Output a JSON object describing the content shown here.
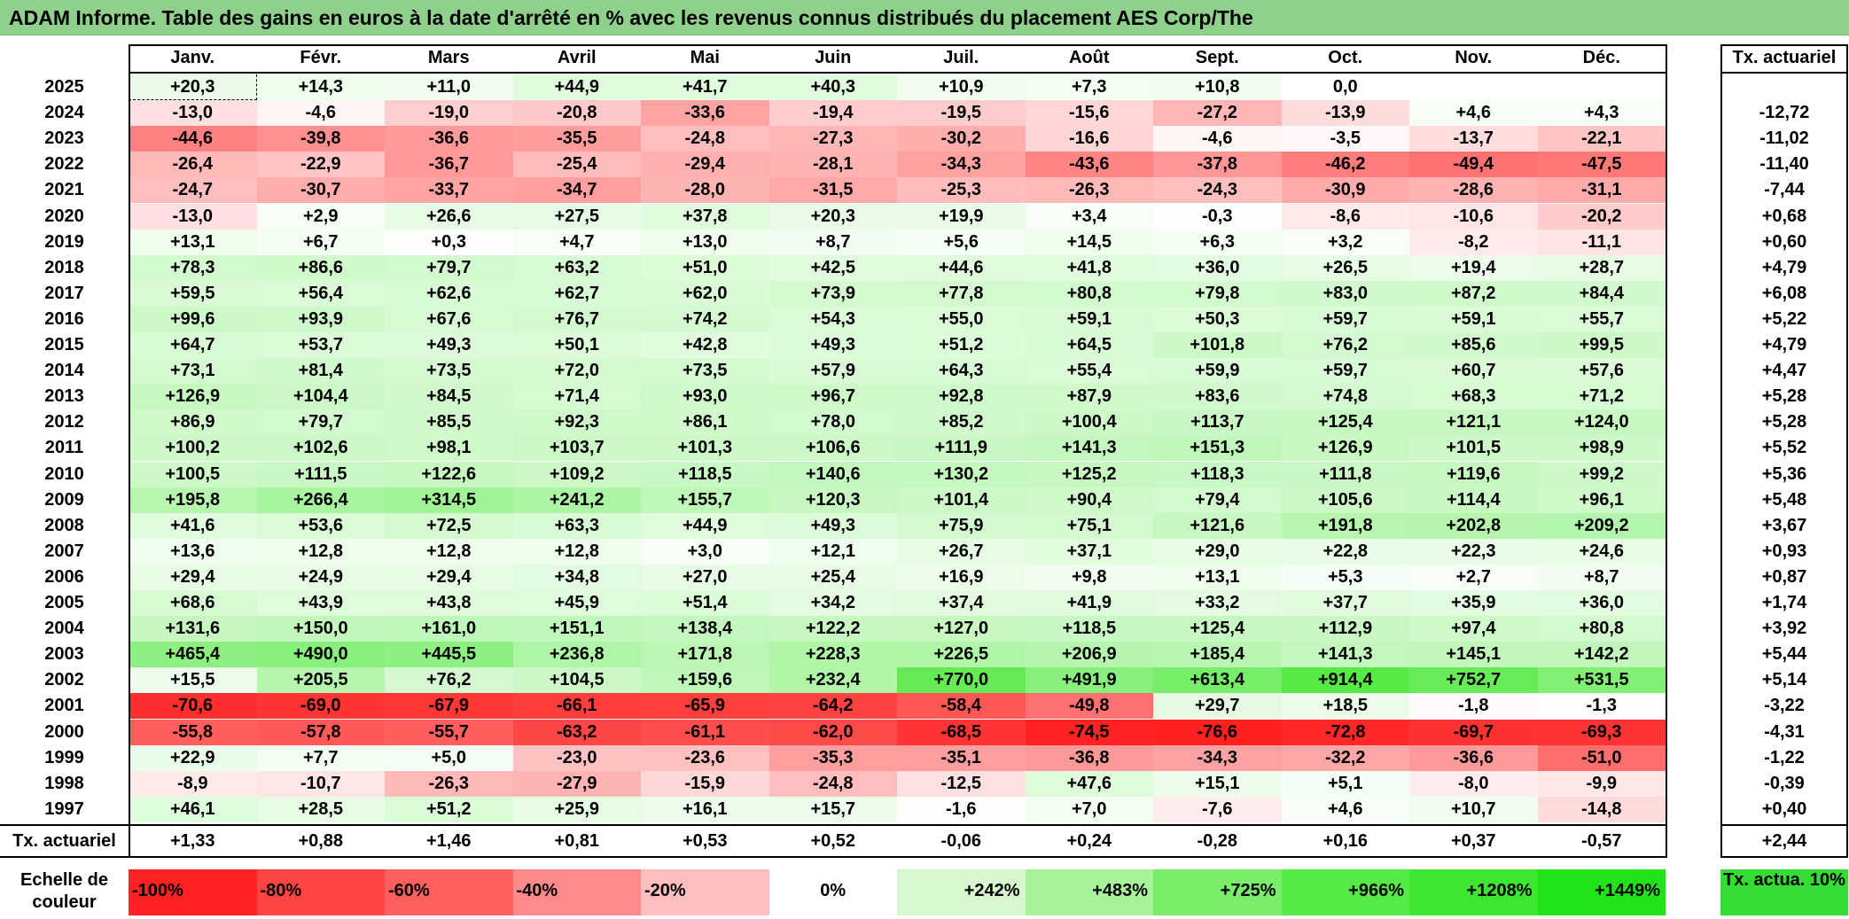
{
  "title": "ADAM Informe. Table des gains en euros à la date d'arrêté en % avec les revenus connus distribués du placement AES Corp/The",
  "chart_data": {
    "type": "heatmap",
    "columns": [
      "Janv.",
      "Févr.",
      "Mars",
      "Avril",
      "Mai",
      "Juin",
      "Juil.",
      "Août",
      "Sept.",
      "Oct.",
      "Nov.",
      "Déc."
    ],
    "rate_header": "Tx. actuariel",
    "rows": [
      {
        "year": "2025",
        "values": [
          "+20,3",
          "+14,3",
          "+11,0",
          "+44,9",
          "+41,7",
          "+40,3",
          "+10,9",
          "+7,3",
          "+10,8",
          "0,0",
          "",
          ""
        ],
        "rate": ""
      },
      {
        "year": "2024",
        "values": [
          "-13,0",
          "-4,6",
          "-19,0",
          "-20,8",
          "-33,6",
          "-19,4",
          "-19,5",
          "-15,6",
          "-27,2",
          "-13,9",
          "+4,6",
          "+4,3"
        ],
        "rate": "-12,72"
      },
      {
        "year": "2023",
        "values": [
          "-44,6",
          "-39,8",
          "-36,6",
          "-35,5",
          "-24,8",
          "-27,3",
          "-30,2",
          "-16,6",
          "-4,6",
          "-3,5",
          "-13,7",
          "-22,1"
        ],
        "rate": "-11,02"
      },
      {
        "year": "2022",
        "values": [
          "-26,4",
          "-22,9",
          "-36,7",
          "-25,4",
          "-29,4",
          "-28,1",
          "-34,3",
          "-43,6",
          "-37,8",
          "-46,2",
          "-49,4",
          "-47,5"
        ],
        "rate": "-11,40"
      },
      {
        "year": "2021",
        "values": [
          "-24,7",
          "-30,7",
          "-33,7",
          "-34,7",
          "-28,0",
          "-31,5",
          "-25,3",
          "-26,3",
          "-24,3",
          "-30,9",
          "-28,6",
          "-31,1"
        ],
        "rate": "-7,44"
      },
      {
        "year": "2020",
        "values": [
          "-13,0",
          "+2,9",
          "+26,6",
          "+27,5",
          "+37,8",
          "+20,3",
          "+19,9",
          "+3,4",
          "-0,3",
          "-8,6",
          "-10,6",
          "-20,2"
        ],
        "rate": "+0,68"
      },
      {
        "year": "2019",
        "values": [
          "+13,1",
          "+6,7",
          "+0,3",
          "+4,7",
          "+13,0",
          "+8,7",
          "+5,6",
          "+14,5",
          "+6,3",
          "+3,2",
          "-8,2",
          "-11,1"
        ],
        "rate": "+0,60"
      },
      {
        "year": "2018",
        "values": [
          "+78,3",
          "+86,6",
          "+79,7",
          "+63,2",
          "+51,0",
          "+42,5",
          "+44,6",
          "+41,8",
          "+36,0",
          "+26,5",
          "+19,4",
          "+28,7"
        ],
        "rate": "+4,79"
      },
      {
        "year": "2017",
        "values": [
          "+59,5",
          "+56,4",
          "+62,6",
          "+62,7",
          "+62,0",
          "+73,9",
          "+77,8",
          "+80,8",
          "+79,8",
          "+83,0",
          "+87,2",
          "+84,4"
        ],
        "rate": "+6,08"
      },
      {
        "year": "2016",
        "values": [
          "+99,6",
          "+93,9",
          "+67,6",
          "+76,7",
          "+74,2",
          "+54,3",
          "+55,0",
          "+59,1",
          "+50,3",
          "+59,7",
          "+59,1",
          "+55,7"
        ],
        "rate": "+5,22"
      },
      {
        "year": "2015",
        "values": [
          "+64,7",
          "+53,7",
          "+49,3",
          "+50,1",
          "+42,8",
          "+49,3",
          "+51,2",
          "+64,5",
          "+101,8",
          "+76,2",
          "+85,6",
          "+99,5"
        ],
        "rate": "+4,79"
      },
      {
        "year": "2014",
        "values": [
          "+73,1",
          "+81,4",
          "+73,5",
          "+72,0",
          "+73,5",
          "+57,9",
          "+64,3",
          "+55,4",
          "+59,9",
          "+59,7",
          "+60,7",
          "+57,6"
        ],
        "rate": "+4,47"
      },
      {
        "year": "2013",
        "values": [
          "+126,9",
          "+104,4",
          "+84,5",
          "+71,4",
          "+93,0",
          "+96,7",
          "+92,8",
          "+87,9",
          "+83,6",
          "+74,8",
          "+68,3",
          "+71,2"
        ],
        "rate": "+5,28"
      },
      {
        "year": "2012",
        "values": [
          "+86,9",
          "+79,7",
          "+85,5",
          "+92,3",
          "+86,1",
          "+78,0",
          "+85,2",
          "+100,4",
          "+113,7",
          "+125,4",
          "+121,1",
          "+124,0"
        ],
        "rate": "+5,28"
      },
      {
        "year": "2011",
        "values": [
          "+100,2",
          "+102,6",
          "+98,1",
          "+103,7",
          "+101,3",
          "+106,6",
          "+111,9",
          "+141,3",
          "+151,3",
          "+126,9",
          "+101,5",
          "+98,9"
        ],
        "rate": "+5,52"
      },
      {
        "year": "2010",
        "values": [
          "+100,5",
          "+111,5",
          "+122,6",
          "+109,2",
          "+118,5",
          "+140,6",
          "+130,2",
          "+125,2",
          "+118,3",
          "+111,8",
          "+119,6",
          "+99,2"
        ],
        "rate": "+5,36"
      },
      {
        "year": "2009",
        "values": [
          "+195,8",
          "+266,4",
          "+314,5",
          "+241,2",
          "+155,7",
          "+120,3",
          "+101,4",
          "+90,4",
          "+79,4",
          "+105,6",
          "+114,4",
          "+96,1"
        ],
        "rate": "+5,48"
      },
      {
        "year": "2008",
        "values": [
          "+41,6",
          "+53,6",
          "+72,5",
          "+63,3",
          "+44,9",
          "+49,3",
          "+75,9",
          "+75,1",
          "+121,6",
          "+191,8",
          "+202,8",
          "+209,2"
        ],
        "rate": "+3,67"
      },
      {
        "year": "2007",
        "values": [
          "+13,6",
          "+12,8",
          "+12,8",
          "+12,8",
          "+3,0",
          "+12,1",
          "+26,7",
          "+37,1",
          "+29,0",
          "+22,8",
          "+22,3",
          "+24,6"
        ],
        "rate": "+0,93"
      },
      {
        "year": "2006",
        "values": [
          "+29,4",
          "+24,9",
          "+29,4",
          "+34,8",
          "+27,0",
          "+25,4",
          "+16,9",
          "+9,8",
          "+13,1",
          "+5,3",
          "+2,7",
          "+8,7"
        ],
        "rate": "+0,87"
      },
      {
        "year": "2005",
        "values": [
          "+68,6",
          "+43,9",
          "+43,8",
          "+45,9",
          "+51,4",
          "+34,2",
          "+37,4",
          "+41,9",
          "+33,2",
          "+37,7",
          "+35,9",
          "+36,0"
        ],
        "rate": "+1,74"
      },
      {
        "year": "2004",
        "values": [
          "+131,6",
          "+150,0",
          "+161,0",
          "+151,1",
          "+138,4",
          "+122,2",
          "+127,0",
          "+118,5",
          "+125,4",
          "+112,9",
          "+97,4",
          "+80,8"
        ],
        "rate": "+3,92"
      },
      {
        "year": "2003",
        "values": [
          "+465,4",
          "+490,0",
          "+445,5",
          "+236,8",
          "+171,8",
          "+228,3",
          "+226,5",
          "+206,9",
          "+185,4",
          "+141,3",
          "+145,1",
          "+142,2"
        ],
        "rate": "+5,44"
      },
      {
        "year": "2002",
        "values": [
          "+15,5",
          "+205,5",
          "+76,2",
          "+104,5",
          "+159,6",
          "+232,4",
          "+770,0",
          "+491,9",
          "+613,4",
          "+914,4",
          "+752,7",
          "+531,5"
        ],
        "rate": "+5,14"
      },
      {
        "year": "2001",
        "values": [
          "-70,6",
          "-69,0",
          "-67,9",
          "-66,1",
          "-65,9",
          "-64,2",
          "-58,4",
          "-49,8",
          "+29,7",
          "+18,5",
          "-1,8",
          "-1,3"
        ],
        "rate": "-3,22"
      },
      {
        "year": "2000",
        "values": [
          "-55,8",
          "-57,8",
          "-55,7",
          "-63,2",
          "-61,1",
          "-62,0",
          "-68,5",
          "-74,5",
          "-76,6",
          "-72,8",
          "-69,7",
          "-69,3"
        ],
        "rate": "-4,31"
      },
      {
        "year": "1999",
        "values": [
          "+22,9",
          "+7,7",
          "+5,0",
          "-23,0",
          "-23,6",
          "-35,3",
          "-35,1",
          "-36,8",
          "-34,3",
          "-32,2",
          "-36,6",
          "-51,0"
        ],
        "rate": "-1,22"
      },
      {
        "year": "1998",
        "values": [
          "-8,9",
          "-10,7",
          "-26,3",
          "-27,9",
          "-15,9",
          "-24,8",
          "-12,5",
          "+47,6",
          "+15,1",
          "+5,1",
          "-8,0",
          "-9,9"
        ],
        "rate": "-0,39"
      },
      {
        "year": "1997",
        "values": [
          "+46,1",
          "+28,5",
          "+51,2",
          "+25,9",
          "+16,1",
          "+15,7",
          "-1,6",
          "+7,0",
          "-7,6",
          "+4,6",
          "+10,7",
          "-14,8"
        ],
        "rate": "+0,40"
      }
    ],
    "total_row": {
      "label": "Tx. actuariel",
      "values": [
        "+1,33",
        "+0,88",
        "+1,46",
        "+0,81",
        "+0,53",
        "+0,52",
        "-0,06",
        "+0,24",
        "-0,28",
        "+0,16",
        "+0,37",
        "-0,57"
      ],
      "rate": "+2,44"
    },
    "scale": {
      "label": "Echelle de couleur",
      "stops": [
        {
          "label": "-100%",
          "color": "#ff2222"
        },
        {
          "label": "-80%",
          "color": "#ff4444"
        },
        {
          "label": "-60%",
          "color": "#ff5f5f"
        },
        {
          "label": "-40%",
          "color": "#ff8a8a"
        },
        {
          "label": "-20%",
          "color": "#ffbdbd"
        },
        {
          "label": "0%",
          "color": "#ffffff"
        },
        {
          "label": "+242%",
          "color": "#d8f7d0"
        },
        {
          "label": "+483%",
          "color": "#a8f29a"
        },
        {
          "label": "+725%",
          "color": "#7aee6a"
        },
        {
          "label": "+966%",
          "color": "#55ea45"
        },
        {
          "label": "+1208%",
          "color": "#3de630"
        },
        {
          "label": "+1449%",
          "color": "#22e21a"
        }
      ],
      "rate_label": "Tx. actua. 10%",
      "rate_color": "#33dd33"
    }
  }
}
